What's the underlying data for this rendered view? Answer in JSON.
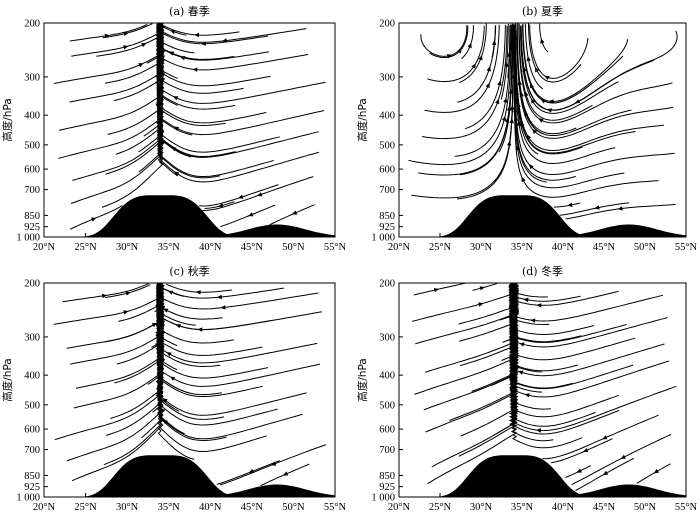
{
  "chart_data": [
    {
      "type": "streamline",
      "title": "(a) 春季",
      "ylabel": "高度/hPa",
      "x_ticks": [
        "20°N",
        "25°N",
        "30°N",
        "35°N",
        "40°N",
        "45°N",
        "50°N",
        "55°N"
      ],
      "y_ticks": [
        "200",
        "300",
        "400",
        "500",
        "600",
        "700",
        "850",
        "925",
        "1 000"
      ],
      "xlim": [
        20,
        55
      ],
      "ylim": [
        1000,
        200
      ],
      "terrain_peak_lat": 34
    },
    {
      "type": "streamline",
      "title": "(b) 夏季",
      "ylabel": "高度/hPa",
      "x_ticks": [
        "20°N",
        "25°N",
        "30°N",
        "35°N",
        "40°N",
        "45°N",
        "50°N",
        "55°N"
      ],
      "y_ticks": [
        "200",
        "300",
        "400",
        "500",
        "600",
        "700",
        "850",
        "925",
        "1 000"
      ],
      "xlim": [
        20,
        55
      ],
      "ylim": [
        1000,
        200
      ],
      "terrain_peak_lat": 34
    },
    {
      "type": "streamline",
      "title": "(c) 秋季",
      "ylabel": "高度/hPa",
      "x_ticks": [
        "20°N",
        "25°N",
        "30°N",
        "35°N",
        "40°N",
        "45°N",
        "50°N",
        "55°N"
      ],
      "y_ticks": [
        "200",
        "300",
        "400",
        "500",
        "600",
        "700",
        "850",
        "925",
        "1 000"
      ],
      "xlim": [
        20,
        55
      ],
      "ylim": [
        1000,
        200
      ],
      "terrain_peak_lat": 34
    },
    {
      "type": "streamline",
      "title": "(d) 冬季",
      "ylabel": "高度/hPa",
      "x_ticks": [
        "20°N",
        "25°N",
        "30°N",
        "35°N",
        "40°N",
        "45°N",
        "50°N",
        "55°N"
      ],
      "y_ticks": [
        "200",
        "300",
        "400",
        "500",
        "600",
        "700",
        "850",
        "925",
        "1 000"
      ],
      "xlim": [
        20,
        55
      ],
      "ylim": [
        1000,
        200
      ],
      "terrain_peak_lat": 34
    }
  ]
}
